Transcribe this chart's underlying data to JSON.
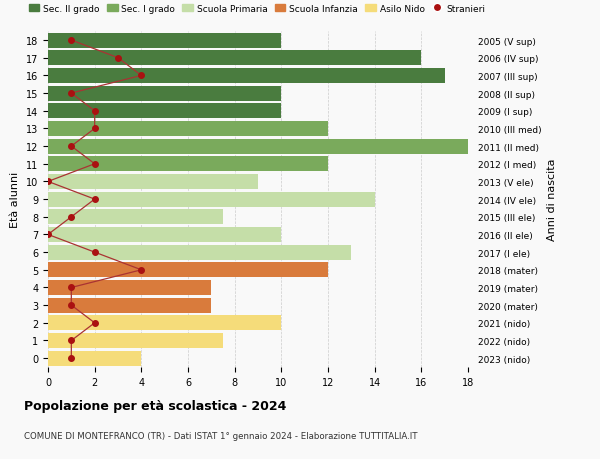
{
  "ages": [
    18,
    17,
    16,
    15,
    14,
    13,
    12,
    11,
    10,
    9,
    8,
    7,
    6,
    5,
    4,
    3,
    2,
    1,
    0
  ],
  "right_labels": [
    "2005 (V sup)",
    "2006 (IV sup)",
    "2007 (III sup)",
    "2008 (II sup)",
    "2009 (I sup)",
    "2010 (III med)",
    "2011 (II med)",
    "2012 (I med)",
    "2013 (V ele)",
    "2014 (IV ele)",
    "2015 (III ele)",
    "2016 (II ele)",
    "2017 (I ele)",
    "2018 (mater)",
    "2019 (mater)",
    "2020 (mater)",
    "2021 (nido)",
    "2022 (nido)",
    "2023 (nido)"
  ],
  "bar_values": [
    10,
    16,
    17,
    10,
    10,
    12,
    18,
    12,
    9,
    14,
    7.5,
    10,
    13,
    12,
    7,
    7,
    10,
    7.5,
    4
  ],
  "bar_colors": [
    "#4a7c3f",
    "#4a7c3f",
    "#4a7c3f",
    "#4a7c3f",
    "#4a7c3f",
    "#7aaa5c",
    "#7aaa5c",
    "#7aaa5c",
    "#c5dea8",
    "#c5dea8",
    "#c5dea8",
    "#c5dea8",
    "#c5dea8",
    "#d97b3c",
    "#d97b3c",
    "#d97b3c",
    "#f5dc7a",
    "#f5dc7a",
    "#f5dc7a"
  ],
  "stranieri_values": [
    1,
    3,
    4,
    1,
    2,
    2,
    1,
    2,
    0,
    2,
    1,
    0,
    2,
    4,
    1,
    1,
    2,
    1,
    1
  ],
  "legend_labels": [
    "Sec. II grado",
    "Sec. I grado",
    "Scuola Primaria",
    "Scuola Infanzia",
    "Asilo Nido",
    "Stranieri"
  ],
  "legend_colors": [
    "#4a7c3f",
    "#7aaa5c",
    "#c5dea8",
    "#d97b3c",
    "#f5dc7a",
    "#aa1111"
  ],
  "ylabel_left": "Età alunni",
  "ylabel_right": "Anni di nascita",
  "title": "Popolazione per età scolastica - 2024",
  "subtitle": "COMUNE DI MONTEFRANCO (TR) - Dati ISTAT 1° gennaio 2024 - Elaborazione TUTTITALIA.IT",
  "xlim": [
    0,
    18
  ],
  "background_color": "#f9f9f9",
  "grid_color": "#cccccc",
  "stranieri_color": "#aa1111",
  "stranieri_line_color": "#aa3333"
}
